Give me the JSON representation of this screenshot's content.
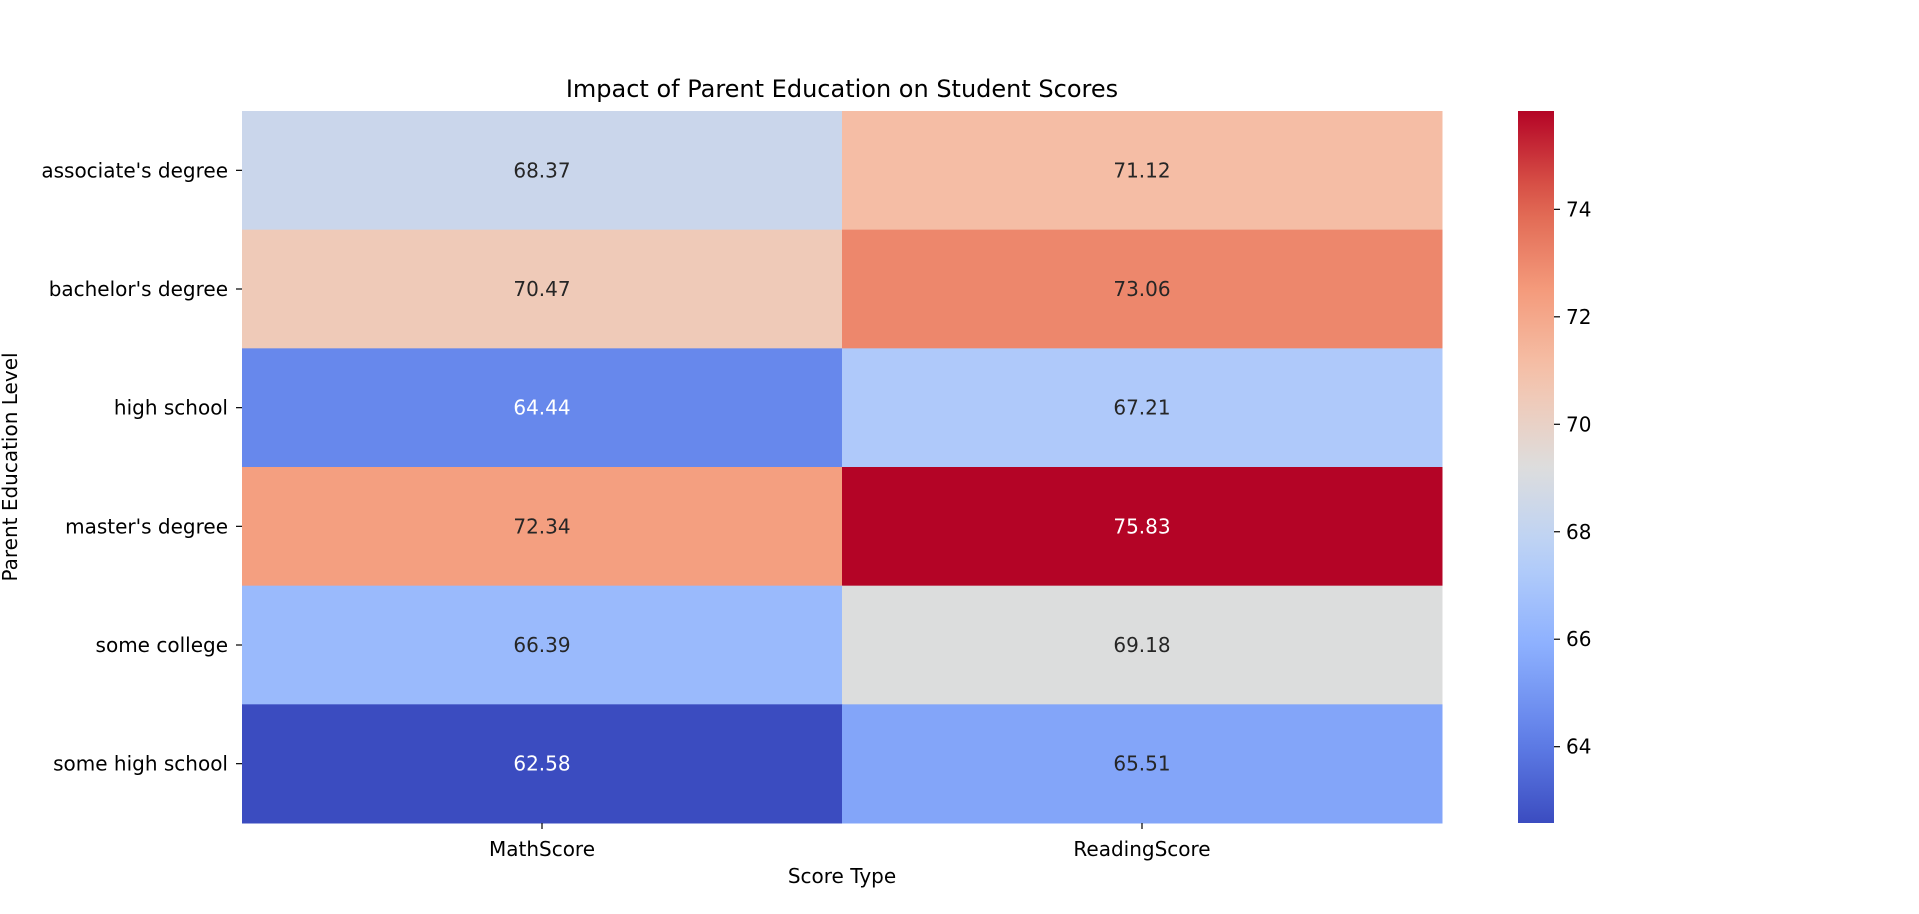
{
  "chart_data": {
    "type": "heatmap",
    "title": "Impact of Parent Education on Student Scores",
    "xlabel": "Score Type",
    "ylabel": "Parent Education Level",
    "x_categories": [
      "MathScore",
      "ReadingScore"
    ],
    "y_categories": [
      "associate's degree",
      "bachelor's degree",
      "high school",
      "master's degree",
      "some college",
      "some high school"
    ],
    "values": [
      [
        68.37,
        71.12
      ],
      [
        70.47,
        73.06
      ],
      [
        64.44,
        67.21
      ],
      [
        72.34,
        75.83
      ],
      [
        66.39,
        69.18
      ],
      [
        62.58,
        65.51
      ]
    ],
    "value_labels": [
      [
        "68.37",
        "71.12"
      ],
      [
        "70.47",
        "73.06"
      ],
      [
        "64.44",
        "67.21"
      ],
      [
        "72.34",
        "75.83"
      ],
      [
        "66.39",
        "69.18"
      ],
      [
        "62.58",
        "65.51"
      ]
    ],
    "colormap": "coolwarm",
    "color_range": [
      62.58,
      75.83
    ],
    "colorbar_ticks": [
      64,
      66,
      68,
      70,
      72,
      74
    ],
    "colorbar_tick_labels": [
      "64",
      "66",
      "68",
      "70",
      "72",
      "74"
    ],
    "grid": false,
    "legend": "colorbar-right"
  }
}
